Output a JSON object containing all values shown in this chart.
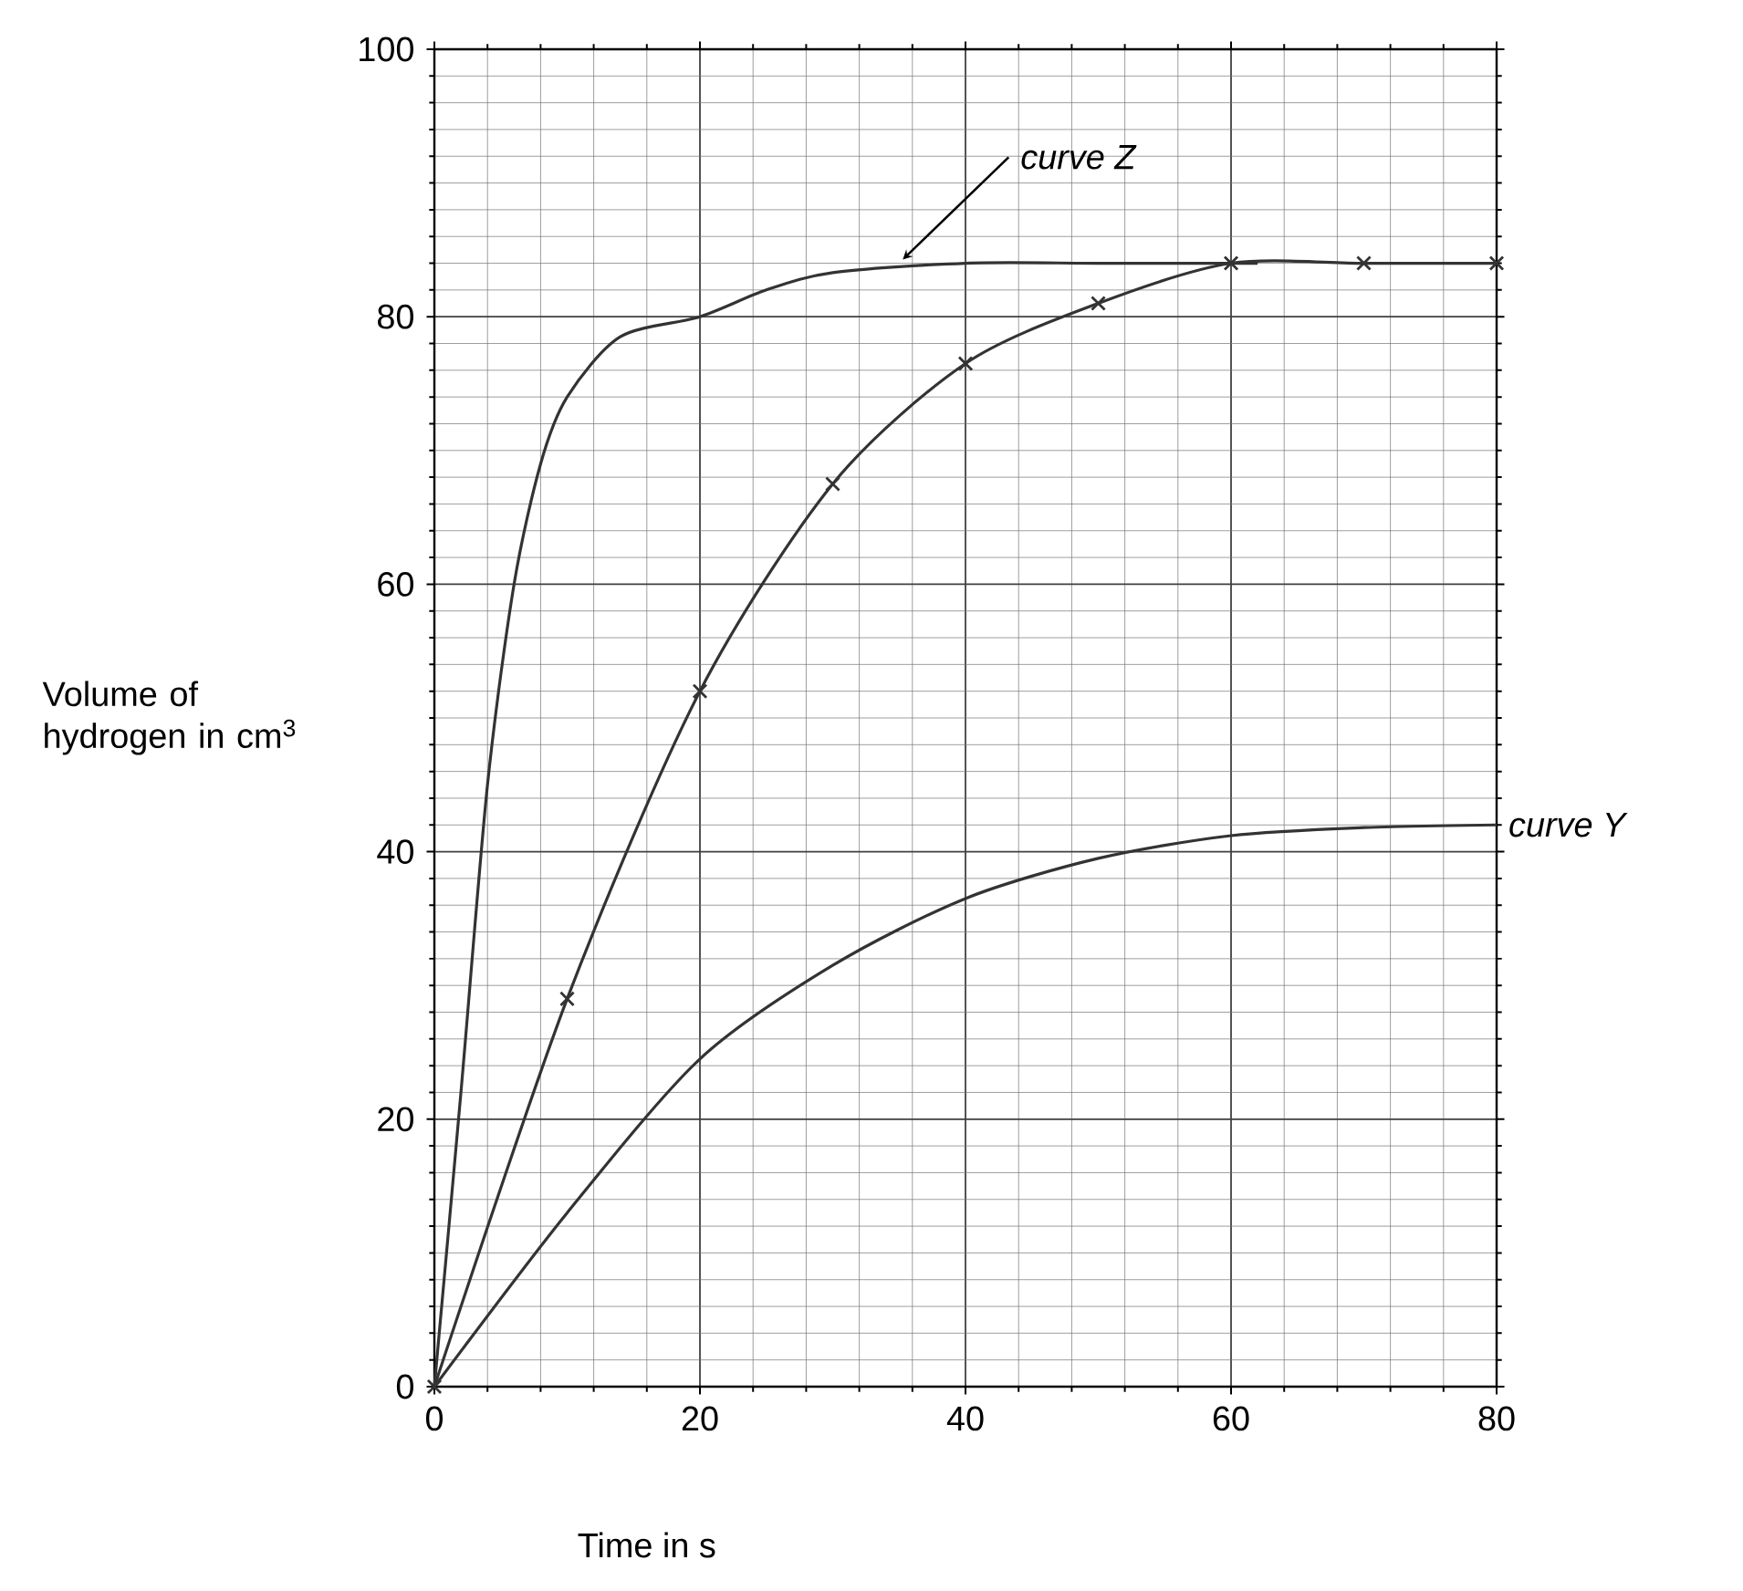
{
  "chart_data": {
    "type": "line",
    "xlabel": "Time in s",
    "ylabel": "Volume of hydrogen in cm$^{3}$",
    "xlim": [
      0,
      80
    ],
    "ylim": [
      0,
      100
    ],
    "xticks": [
      0,
      20,
      40,
      60,
      80
    ],
    "yticks": [
      0,
      20,
      40,
      60,
      80,
      100
    ],
    "grid": true,
    "series": [
      {
        "color": "#333333",
        "marker": "none",
        "x": [
          0,
          2,
          4,
          6,
          8,
          10,
          14,
          20,
          25,
          30,
          40,
          50,
          60,
          62
        ],
        "values": [
          0,
          22,
          45,
          60,
          69,
          74,
          78.5,
          80,
          82,
          83.3,
          84,
          84,
          84,
          84
        ]
      },
      {
        "color": "#333333",
        "marker": "cross",
        "x": [
          0,
          10,
          20,
          30,
          40,
          50,
          60,
          70,
          80
        ],
        "values": [
          0,
          29,
          52,
          67.5,
          76.5,
          81,
          84,
          84,
          84
        ]
      },
      {
        "color": "#333333",
        "marker": "none",
        "x": [
          0,
          10,
          20,
          30,
          40,
          50,
          60,
          70,
          80
        ],
        "values": [
          0,
          13,
          24.5,
          31.5,
          36.5,
          39.5,
          41.2,
          41.8,
          42
        ]
      }
    ],
    "annotations": [
      {
        "text": "curve Z",
        "x": 35,
        "y": 84
      },
      {
        "text": "curve Y",
        "x": 80,
        "y": 42
      }
    ]
  }
}
